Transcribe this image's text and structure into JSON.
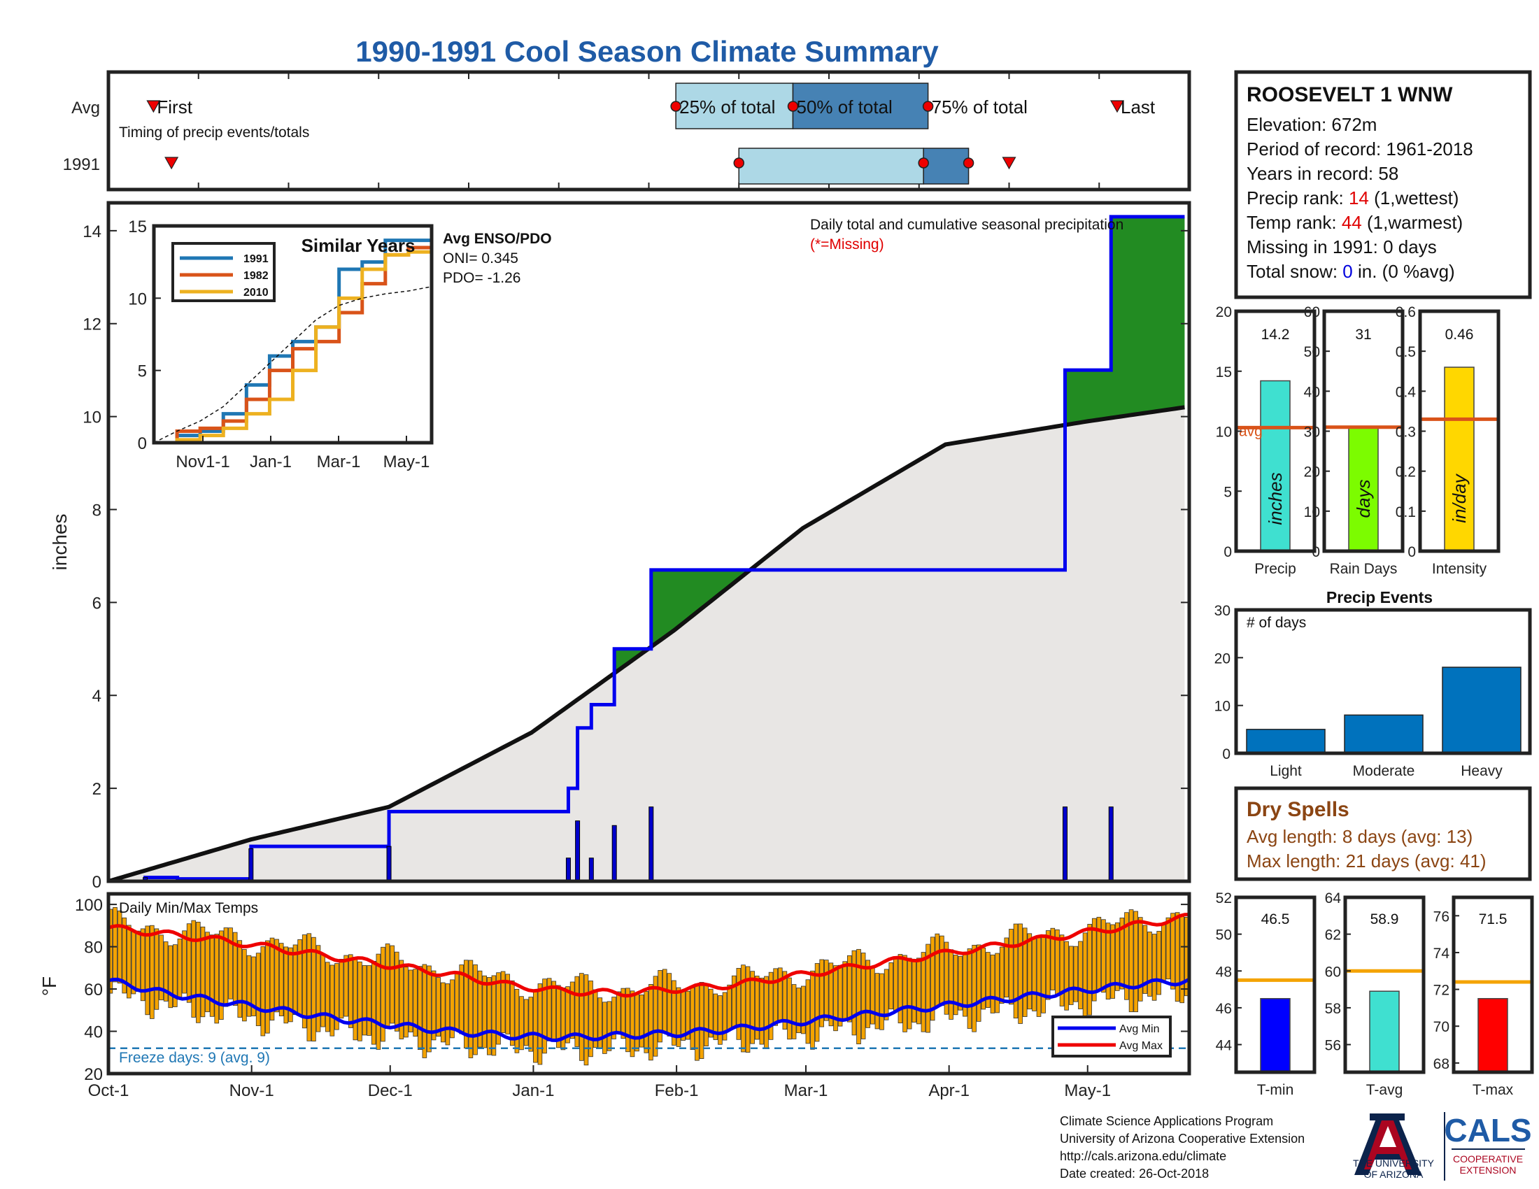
{
  "title": "1990-1991 Cool Season Climate Summary",
  "timing": {
    "row_avg_label": "Avg",
    "row_year_label": "1991",
    "caption": "Timing of precip events/totals",
    "first_label": "First",
    "p25_label": "25% of total",
    "p50_label": "50% of total",
    "p75_label": "75% of total",
    "last_label": "Last",
    "avg": {
      "first": 6.5,
      "p25": 12.3,
      "p50": 13.6,
      "p75": 15.1,
      "last": 17.2
    },
    "year": {
      "first": 6.7,
      "p25": 13.0,
      "p50": 15.05,
      "p75": 15.55,
      "last": 16.0
    },
    "xmin": 6,
    "xmax": 18
  },
  "station": {
    "name": "ROOSEVELT 1 WNW",
    "elevation": "Elevation: 672m",
    "period": "Period of record: 1961-2018",
    "years": "Years in record: 58",
    "precip_rank_prefix": "Precip rank: ",
    "precip_rank_value": "14",
    "precip_rank_suffix": " (1,wettest)",
    "temp_rank_prefix": "Temp rank: ",
    "temp_rank_value": "44",
    "temp_rank_suffix": " (1,warmest)",
    "missing": "Missing in 1991: 0 days",
    "snow_prefix": "Total snow: ",
    "snow_value": "0",
    "snow_suffix": " in. (0 %avg)"
  },
  "main_chart": {
    "ylabel": "inches",
    "annotation": "Daily total and cumulative seasonal precipitation",
    "missing_note": "(*=Missing)",
    "yticks": [
      "0",
      "2",
      "4",
      "6",
      "8",
      "10",
      "12",
      "14"
    ],
    "xticks": [
      "Oct-1",
      "Nov-1",
      "Dec-1",
      "Jan-1",
      "Feb-1",
      "Mar-1",
      "Apr-1",
      "May-1"
    ]
  },
  "chart_data": [
    {
      "type": "line",
      "ylabel": "inches",
      "ylim": [
        0,
        14.6
      ],
      "xlim": [
        0,
        235
      ],
      "series": [
        {
          "values_day": [
            0,
            8,
            15,
            31,
            50,
            61,
            75,
            92,
            100,
            102,
            105,
            107,
            110,
            118,
            160,
            167,
            208,
            218,
            234
          ],
          "values": [
            0,
            0.08,
            0.05,
            0.75,
            0.75,
            1.5,
            1.5,
            1.5,
            2.0,
            3.3,
            3.8,
            3.8,
            5.0,
            6.7,
            6.7,
            6.7,
            11.0,
            14.3,
            14.3
          ]
        },
        {
          "values_day": [
            0,
            31,
            61,
            92,
            123,
            151,
            182,
            213,
            234
          ],
          "values": [
            0,
            0.9,
            1.6,
            3.2,
            5.4,
            7.6,
            9.4,
            9.9,
            10.2
          ]
        }
      ]
    },
    {
      "type": "line",
      "title": "Similar Years",
      "ylim": [
        0,
        15
      ],
      "xticks": [
        "Nov1-1",
        "Jan-1",
        "Mar-1",
        "May-1"
      ],
      "series": [
        {
          "name": "1991",
          "values": [
            0,
            0.5,
            0.8,
            2,
            4,
            6,
            7,
            8,
            12,
            12.5,
            14,
            14,
            14.2
          ]
        },
        {
          "name": "1982",
          "values": [
            0,
            0.8,
            1,
            1.5,
            3,
            5,
            6.5,
            7,
            9,
            11,
            13,
            13.5,
            13.8
          ]
        },
        {
          "name": "2010",
          "values": [
            0,
            0.2,
            0.5,
            1,
            2,
            3,
            5,
            8,
            10,
            12,
            13,
            13.2,
            13.5
          ]
        },
        {
          "values": [
            0,
            0.8,
            1.5,
            2.5,
            4,
            5.5,
            7,
            8.5,
            9.5,
            10,
            10.3,
            10.5,
            10.8
          ]
        }
      ]
    },
    {
      "type": "bar",
      "title": "Precip Events",
      "ylabel": "# of days",
      "categories": [
        "Light",
        "Moderate",
        "Heavy"
      ],
      "values": [
        5,
        8,
        18
      ],
      "ylim": [
        0,
        30
      ]
    },
    {
      "type": "line",
      "title": "Daily Min/Max Temps",
      "ylabel": "°F",
      "ylim": [
        20,
        105
      ],
      "series": [
        {
          "name": "Avg Min",
          "values": [
            64,
            58,
            54,
            50,
            46,
            43,
            40,
            38,
            37,
            38,
            39,
            41,
            44,
            47,
            50,
            53,
            56,
            59,
            62,
            64
          ]
        },
        {
          "name": "Avg Max",
          "values": [
            89,
            86,
            83,
            79,
            75,
            71,
            67,
            62,
            59,
            58,
            60,
            62,
            66,
            70,
            74,
            78,
            82,
            86,
            90,
            94
          ]
        }
      ]
    }
  ],
  "enso": {
    "title": "Avg ENSO/PDO",
    "oni": "ONI= 0.345",
    "pdo": "PDO= -1.26"
  },
  "inset": {
    "title": "Similar Years",
    "yticks": [
      "0",
      "5",
      "10",
      "15"
    ],
    "xticks": [
      "Nov1-1",
      "Jan-1",
      "Mar-1",
      "May-1"
    ]
  },
  "summary_bars": [
    {
      "label": "Precip",
      "unit": "inches",
      "value": 14.2,
      "value_label": "14.2",
      "avg": 10.3,
      "avg_label": "avg",
      "ymax": 20,
      "yticks": [
        "0",
        "5",
        "10",
        "15",
        "20"
      ],
      "color": "#3fe0d0"
    },
    {
      "label": "Rain Days",
      "unit": "days",
      "value": 31,
      "value_label": "31",
      "avg": 31,
      "ymax": 60,
      "yticks": [
        "0",
        "10",
        "20",
        "30",
        "40",
        "50",
        "60"
      ],
      "color": "#7cfc00"
    },
    {
      "label": "Intensity",
      "unit": "in/day",
      "value": 0.46,
      "value_label": "0.46",
      "avg": 0.33,
      "ymax": 0.6,
      "yticks": [
        "0",
        "0.1",
        "0.2",
        "0.3",
        "0.4",
        "0.5",
        "0.6"
      ],
      "color": "#ffd700"
    }
  ],
  "events": {
    "title": "Precip Events",
    "ylabel": "# of days",
    "yticks": [
      "0",
      "10",
      "20",
      "30"
    ],
    "categories": [
      "Light",
      "Moderate",
      "Heavy"
    ],
    "values": [
      5,
      8,
      18
    ],
    "ymax": 30
  },
  "dry_spells": {
    "title": "Dry Spells",
    "avg_line": "Avg length: 8 days (avg: 13)",
    "max_line": "Max length: 21 days (avg: 41)"
  },
  "temp_chart": {
    "title": "Daily Min/Max Temps",
    "ylabel": "°F",
    "yticks": [
      "20",
      "40",
      "60",
      "80",
      "100"
    ],
    "freeze_label": "Freeze days: 9 (avg. 9)",
    "freeze_value": 32,
    "legend_min": "Avg Min",
    "legend_max": "Avg Max"
  },
  "temp_bars": [
    {
      "label": "T-min",
      "value": 46.5,
      "value_label": "46.5",
      "avg": 47.5,
      "ymin": 42.5,
      "ymax": 52,
      "yticks": [
        "44",
        "46",
        "48",
        "50",
        "52"
      ],
      "tickvals": [
        44,
        46,
        48,
        50,
        52
      ],
      "color": "#0000ff"
    },
    {
      "label": "T-avg",
      "value": 58.9,
      "value_label": "58.9",
      "avg": 60,
      "ymin": 54.5,
      "ymax": 64,
      "yticks": [
        "56",
        "58",
        "60",
        "62",
        "64"
      ],
      "tickvals": [
        56,
        58,
        60,
        62,
        64
      ],
      "color": "#3fe0d0"
    },
    {
      "label": "T-max",
      "value": 71.5,
      "value_label": "71.5",
      "avg": 72.4,
      "ymin": 67.5,
      "ymax": 77,
      "yticks": [
        "68",
        "70",
        "72",
        "74",
        "76"
      ],
      "tickvals": [
        68,
        70,
        72,
        74,
        76
      ],
      "color": "#ff0000"
    }
  ],
  "footer": {
    "line1": "Climate Science Applications Program",
    "line2": "University of Arizona Cooperative Extension",
    "line3": "http://cals.arizona.edu/climate",
    "line4": " Date created: 26-Oct-2018",
    "ua_line1": "THE UNIVERSITY",
    "ua_line2": "OF ARIZONA",
    "cals": "CALS",
    "coop1": "COOPERATIVE",
    "coop2": "EXTENSION"
  }
}
